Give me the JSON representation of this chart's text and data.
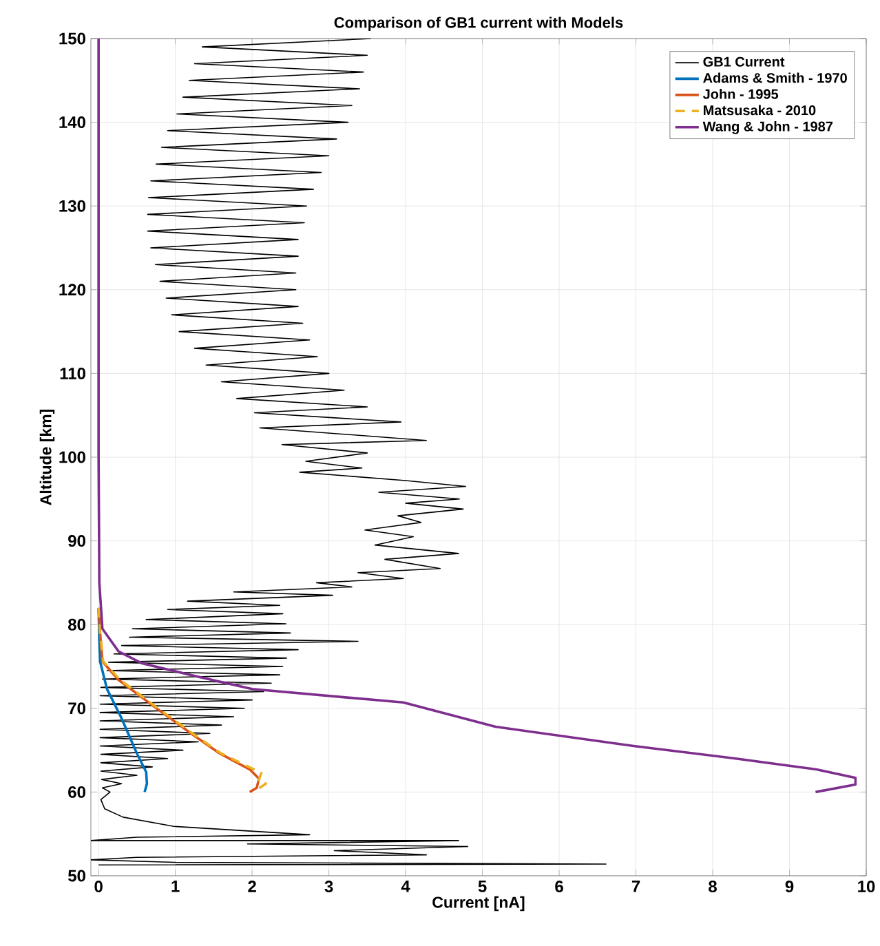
{
  "chart_data": {
    "type": "line",
    "title": "Comparison of GB1 current with Models",
    "xlabel": "Current [nA]",
    "ylabel": "Altitude [km]",
    "xlim": [
      -0.1,
      10
    ],
    "ylim": [
      50,
      150
    ],
    "xticks": [
      0,
      1,
      2,
      3,
      4,
      5,
      6,
      7,
      8,
      9,
      10
    ],
    "yticks": [
      50,
      60,
      70,
      80,
      90,
      100,
      110,
      120,
      130,
      140,
      150
    ],
    "grid": true,
    "legend": "top right",
    "marker": "none",
    "line_style": "solid",
    "series": [
      {
        "name": "GB1 Current",
        "color": "#000000",
        "x": [
          3.55,
          1.35,
          3.5,
          1.25,
          3.45,
          1.18,
          3.4,
          1.1,
          3.3,
          1.02,
          3.25,
          0.9,
          3.1,
          0.82,
          3.0,
          0.75,
          2.9,
          0.68,
          2.8,
          0.65,
          2.71,
          0.64,
          2.68,
          0.64,
          2.6,
          0.68,
          2.6,
          0.74,
          2.57,
          0.8,
          2.57,
          0.88,
          2.6,
          0.95,
          2.66,
          1.05,
          2.75,
          1.25,
          2.85,
          1.4,
          3.0,
          1.6,
          3.2,
          1.8,
          3.5,
          2.03,
          3.94,
          2.1,
          4.27,
          2.39,
          3.5,
          2.7,
          3.43,
          2.62,
          4.0,
          4.78,
          3.65,
          4.7,
          4.0,
          4.75,
          3.9,
          4.2,
          3.47,
          4.1,
          3.6,
          4.69,
          3.73,
          4.45,
          3.38,
          3.97,
          2.84,
          3.3,
          1.76,
          3.05,
          1.16,
          2.36,
          0.9,
          2.4,
          0.62,
          2.44,
          0.44,
          2.5,
          0.4,
          3.38,
          0.3,
          2.6,
          0.2,
          2.45,
          0.13,
          2.4,
          0.11,
          2.36,
          0.05,
          2.25,
          0.03,
          2.15,
          0.02,
          2.0,
          0.02,
          1.9,
          0.02,
          1.76,
          0.02,
          1.6,
          0.02,
          1.45,
          0.02,
          1.3,
          0.02,
          1.1,
          0.03,
          0.9,
          0.03,
          0.7,
          0.03,
          0.5,
          0.04,
          0.3,
          0.05,
          0.15,
          0.03,
          0.08,
          0.32,
          0.98,
          2.75,
          0.5,
          -0.1,
          4.69,
          1.94,
          4.81,
          3.07,
          4.27,
          0.5,
          -0.1,
          1.0,
          6.61,
          0.0
        ],
        "values": [
          150,
          149,
          148,
          147,
          146,
          145,
          144,
          143,
          142,
          141,
          140,
          139,
          138,
          137,
          136,
          135,
          134,
          133,
          132,
          131,
          130,
          129,
          128,
          127,
          126,
          125,
          124,
          123,
          122,
          121,
          120,
          119,
          118,
          117,
          116,
          115,
          114,
          113,
          112,
          111,
          110,
          109,
          108,
          107,
          106,
          105.3,
          104.2,
          103.5,
          102,
          101.5,
          100.5,
          99.5,
          98.7,
          98.2,
          97.2,
          96.5,
          95.8,
          95,
          94.5,
          93.8,
          93,
          92.2,
          91.3,
          90.5,
          89.5,
          88.5,
          87.8,
          86.7,
          86.2,
          85.5,
          85,
          84.5,
          83.9,
          83.5,
          82.8,
          82.3,
          81.8,
          81.3,
          80.6,
          80.1,
          79.5,
          79,
          78.5,
          78,
          77.5,
          77,
          76.5,
          76,
          75.5,
          75,
          74.5,
          74,
          73.5,
          73,
          72.5,
          72,
          71.5,
          71,
          70.5,
          70,
          69.5,
          69,
          68.5,
          68,
          67.5,
          67,
          66.5,
          66,
          65.5,
          65,
          64.5,
          64,
          63.5,
          63,
          62.5,
          62,
          61.5,
          61,
          60.5,
          60,
          59.1,
          58,
          57,
          55.9,
          54.9,
          54.6,
          54.2,
          54.2,
          53.8,
          53.5,
          53,
          52.5,
          52.2,
          51.9,
          51.6,
          51.4,
          51.3
        ]
      },
      {
        "name": "Adams & Smith - 1970",
        "color": "#0072bd",
        "x": [
          0,
          0.01,
          0.02,
          0.11,
          0.29,
          0.5,
          0.62,
          0.63,
          0.6
        ],
        "values": [
          82,
          78,
          75.6,
          72.3,
          69,
          64.6,
          62.4,
          61,
          60
        ]
      },
      {
        "name": "John - 1995",
        "color": "#d95319",
        "x": [
          0,
          0.02,
          0.05,
          0.26,
          0.74,
          1.22,
          1.58,
          1.97,
          2.09,
          2.06,
          1.97
        ],
        "values": [
          82,
          79,
          75.6,
          73.4,
          70.1,
          66.9,
          64.6,
          62.7,
          61.6,
          60.5,
          60
        ]
      },
      {
        "name": "Matsusaka - 2010",
        "color": "#edb120",
        "line_style": "dashed",
        "x": [
          0,
          0.02,
          0.06,
          0.28,
          0.76,
          1.24,
          1.6,
          1.98,
          2.12,
          2.08,
          2.18,
          2.08
        ],
        "values": [
          82,
          79,
          75.6,
          73.4,
          70.1,
          66.9,
          64.6,
          62.9,
          62.3,
          61.2,
          61.0,
          60.4
        ]
      },
      {
        "name": "Wang & John - 1987",
        "color": "#7e2f8e",
        "x": [
          0,
          0,
          0.01,
          0.05,
          0.26,
          0.56,
          1.28,
          2.0,
          3.97,
          5.17,
          6.97,
          8.3,
          9.35,
          9.86,
          9.86,
          9.34
        ],
        "values": [
          150,
          100,
          85,
          79.5,
          76.8,
          75.4,
          73.8,
          72.3,
          70.7,
          67.8,
          65.5,
          64,
          62.7,
          61.7,
          60.9,
          60
        ]
      }
    ]
  }
}
